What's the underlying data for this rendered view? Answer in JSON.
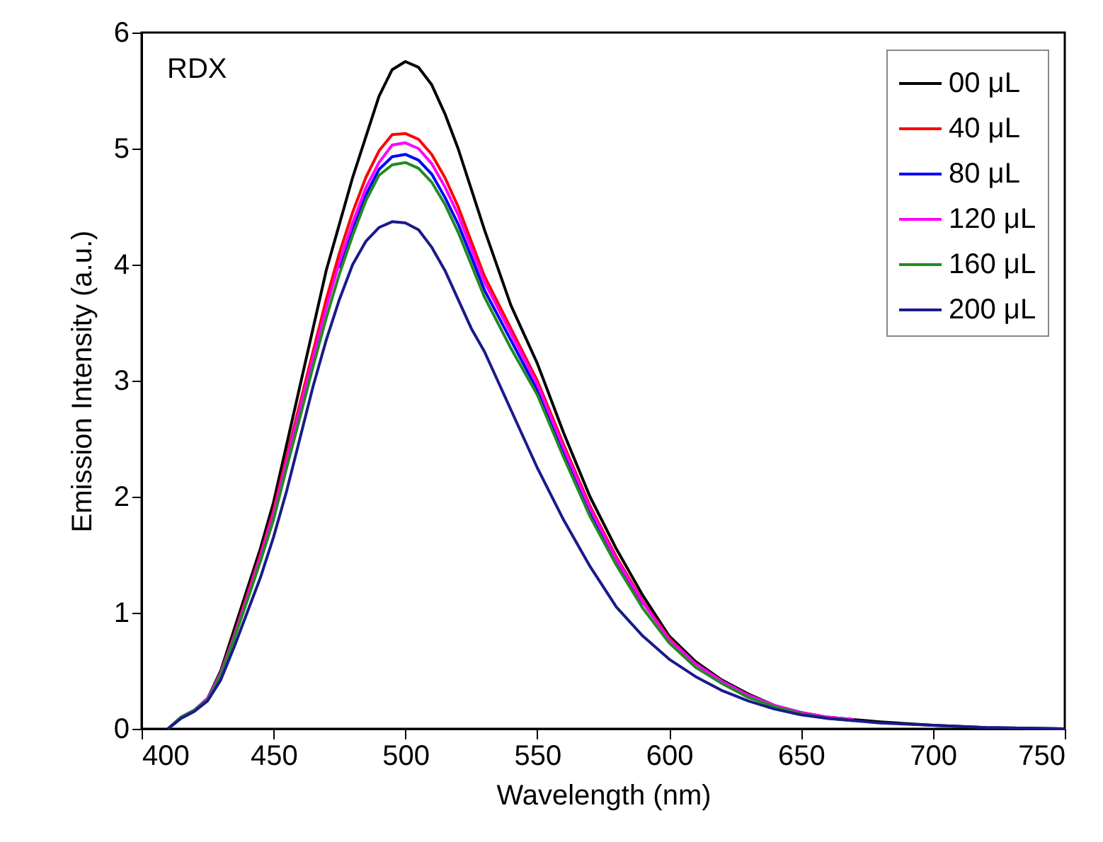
{
  "chart_data": {
    "type": "line",
    "xlabel": "Wavelength (nm)",
    "ylabel": "Emission Intensity (a.u.)",
    "annotations": [
      "RDX"
    ],
    "x": [
      410,
      415,
      420,
      425,
      430,
      435,
      440,
      445,
      450,
      455,
      460,
      465,
      470,
      475,
      480,
      485,
      490,
      495,
      500,
      505,
      510,
      515,
      520,
      525,
      530,
      540,
      550,
      560,
      570,
      580,
      590,
      600,
      610,
      620,
      630,
      640,
      650,
      660,
      670,
      680,
      700,
      720,
      750
    ],
    "xlim": [
      400,
      750
    ],
    "xticks": [
      400,
      450,
      500,
      550,
      600,
      650,
      700,
      750
    ],
    "ylim": [
      0,
      6
    ],
    "yticks": [
      0,
      1,
      2,
      3,
      4,
      5,
      6
    ],
    "grid": false,
    "legend": "top right",
    "marker": "none",
    "line_style": "solid",
    "series": [
      {
        "name": "00 μL",
        "color": "#000000",
        "values": [
          0,
          0.1,
          0.16,
          0.26,
          0.5,
          0.85,
          1.2,
          1.55,
          1.95,
          2.45,
          2.95,
          3.45,
          3.95,
          4.35,
          4.75,
          5.1,
          5.45,
          5.68,
          5.75,
          5.7,
          5.55,
          5.3,
          5.0,
          4.65,
          4.3,
          3.65,
          3.15,
          2.55,
          2.0,
          1.55,
          1.15,
          0.8,
          0.58,
          0.42,
          0.3,
          0.2,
          0.14,
          0.1,
          0.08,
          0.06,
          0.03,
          0.01,
          0
        ]
      },
      {
        "name": "40 μL",
        "color": "#ff0000",
        "values": [
          null,
          null,
          null,
          null,
          0.48,
          0.8,
          1.15,
          1.5,
          1.88,
          2.35,
          2.8,
          3.25,
          3.7,
          4.1,
          4.45,
          4.75,
          4.98,
          5.12,
          5.13,
          5.08,
          4.95,
          4.75,
          4.5,
          4.2,
          3.9,
          3.45,
          3.0,
          2.45,
          1.92,
          1.48,
          1.1,
          0.78,
          0.56,
          0.41,
          null,
          null,
          null,
          null,
          null,
          null,
          null,
          null,
          null
        ]
      },
      {
        "name": "80 μL",
        "color": "#0000ff",
        "values": [
          null,
          null,
          null,
          null,
          null,
          null,
          null,
          null,
          null,
          null,
          null,
          null,
          null,
          3.97,
          4.3,
          4.6,
          4.82,
          4.93,
          4.95,
          4.9,
          4.78,
          4.58,
          4.35,
          4.07,
          3.78,
          3.35,
          2.92,
          2.38,
          1.87,
          1.44,
          1.07,
          null,
          null,
          null,
          null,
          null,
          null,
          null,
          null,
          null,
          null,
          null,
          null
        ]
      },
      {
        "name": "120 μL",
        "color": "#ff00ff",
        "values": [
          0,
          0.1,
          0.16,
          0.26,
          0.48,
          0.79,
          1.13,
          1.48,
          1.85,
          2.31,
          2.76,
          3.2,
          3.63,
          4.02,
          4.36,
          4.66,
          4.88,
          5.03,
          5.05,
          5.0,
          4.87,
          4.67,
          4.43,
          4.14,
          3.85,
          3.41,
          2.97,
          2.42,
          1.9,
          1.46,
          1.09,
          0.77,
          0.56,
          0.41,
          0.29,
          0.2,
          0.14,
          0.1,
          0.08,
          null,
          null,
          null,
          null
        ]
      },
      {
        "name": "160 μL",
        "color": "#228b22",
        "values": [
          0,
          0.1,
          0.16,
          0.25,
          0.46,
          0.77,
          1.1,
          1.44,
          1.8,
          2.25,
          2.68,
          3.12,
          3.54,
          3.92,
          4.25,
          4.55,
          4.77,
          4.86,
          4.88,
          4.83,
          4.71,
          4.52,
          4.28,
          4.0,
          3.72,
          3.28,
          2.88,
          2.34,
          1.83,
          1.41,
          1.04,
          0.74,
          0.53,
          0.39,
          0.27,
          0.19,
          0.13,
          0.09,
          0.07,
          null,
          null,
          null,
          null
        ]
      },
      {
        "name": "200 μL",
        "color": "#1a1a8c",
        "values": [
          0,
          0.09,
          0.15,
          0.24,
          0.42,
          0.7,
          1.0,
          1.3,
          1.65,
          2.05,
          2.5,
          2.95,
          3.35,
          3.7,
          4.0,
          4.2,
          4.32,
          4.37,
          4.36,
          4.3,
          4.15,
          3.95,
          3.7,
          3.45,
          3.25,
          2.75,
          2.25,
          1.8,
          1.4,
          1.05,
          0.8,
          0.6,
          0.45,
          0.33,
          0.24,
          0.17,
          0.12,
          0.09,
          0.07,
          0.05,
          0.03,
          0.01,
          0
        ]
      }
    ]
  }
}
